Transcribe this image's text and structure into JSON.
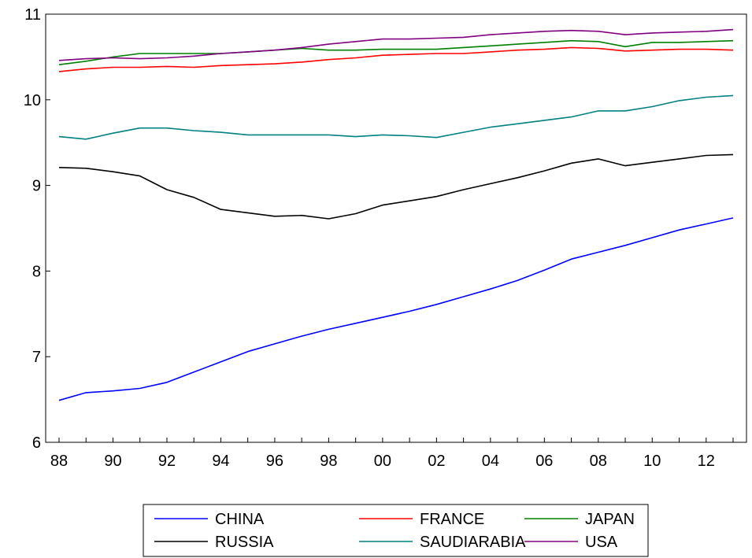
{
  "chart_data": {
    "type": "line",
    "title": "",
    "xlabel": "",
    "ylabel": "",
    "ylim": [
      6,
      11
    ],
    "xlim": [
      1988,
      2013
    ],
    "yticks": [
      6,
      7,
      8,
      9,
      10,
      11
    ],
    "xtick_values": [
      1988,
      1990,
      1992,
      1994,
      1996,
      1998,
      2000,
      2002,
      2004,
      2006,
      2008,
      2010,
      2012
    ],
    "xtick_labels": [
      "88",
      "90",
      "92",
      "94",
      "96",
      "98",
      "00",
      "02",
      "04",
      "06",
      "08",
      "10",
      "12"
    ],
    "grid": false,
    "legend_position": "bottom",
    "x": [
      1988,
      1989,
      1990,
      1991,
      1992,
      1993,
      1994,
      1995,
      1996,
      1997,
      1998,
      1999,
      2000,
      2001,
      2002,
      2003,
      2004,
      2005,
      2006,
      2007,
      2008,
      2009,
      2010,
      2011,
      2012,
      2013
    ],
    "series": [
      {
        "name": "CHINA",
        "color": "#0000ff",
        "values": [
          6.49,
          6.58,
          6.6,
          6.63,
          6.7,
          6.82,
          6.94,
          7.06,
          7.15,
          7.24,
          7.32,
          7.39,
          7.46,
          7.53,
          7.61,
          7.7,
          7.79,
          7.89,
          8.01,
          8.14,
          8.22,
          8.3,
          8.39,
          8.48,
          8.55,
          8.62
        ]
      },
      {
        "name": "FRANCE",
        "color": "#ff0000",
        "values": [
          10.33,
          10.36,
          10.38,
          10.38,
          10.39,
          10.38,
          10.4,
          10.41,
          10.42,
          10.44,
          10.47,
          10.49,
          10.52,
          10.53,
          10.54,
          10.54,
          10.56,
          10.58,
          10.59,
          10.61,
          10.6,
          10.57,
          10.58,
          10.59,
          10.59,
          10.58
        ]
      },
      {
        "name": "JAPAN",
        "color": "#008000",
        "values": [
          10.41,
          10.45,
          10.5,
          10.54,
          10.54,
          10.54,
          10.54,
          10.56,
          10.58,
          10.6,
          10.58,
          10.58,
          10.59,
          10.59,
          10.59,
          10.61,
          10.63,
          10.65,
          10.67,
          10.69,
          10.68,
          10.62,
          10.67,
          10.67,
          10.68,
          10.69
        ]
      },
      {
        "name": "RUSSIA",
        "color": "#000000",
        "values": [
          9.21,
          9.2,
          9.16,
          9.11,
          8.95,
          8.86,
          8.72,
          8.68,
          8.64,
          8.65,
          8.61,
          8.67,
          8.77,
          8.82,
          8.87,
          8.95,
          9.02,
          9.09,
          9.17,
          9.26,
          9.31,
          9.23,
          9.27,
          9.31,
          9.35,
          9.36
        ]
      },
      {
        "name": "SAUDIARABIA",
        "color": "#008080",
        "values": [
          9.57,
          9.54,
          9.61,
          9.67,
          9.67,
          9.64,
          9.62,
          9.59,
          9.59,
          9.59,
          9.59,
          9.57,
          9.59,
          9.58,
          9.56,
          9.62,
          9.68,
          9.72,
          9.76,
          9.8,
          9.87,
          9.87,
          9.92,
          9.99,
          10.03,
          10.05
        ]
      },
      {
        "name": "USA",
        "color": "#800080",
        "values": [
          10.46,
          10.48,
          10.49,
          10.48,
          10.49,
          10.51,
          10.54,
          10.56,
          10.58,
          10.61,
          10.65,
          10.68,
          10.71,
          10.71,
          10.72,
          10.73,
          10.76,
          10.78,
          10.8,
          10.81,
          10.8,
          10.76,
          10.78,
          10.79,
          10.8,
          10.82
        ]
      }
    ],
    "legend_order": [
      "CHINA",
      "FRANCE",
      "JAPAN",
      "RUSSIA",
      "SAUDIARABIA",
      "USA"
    ]
  }
}
